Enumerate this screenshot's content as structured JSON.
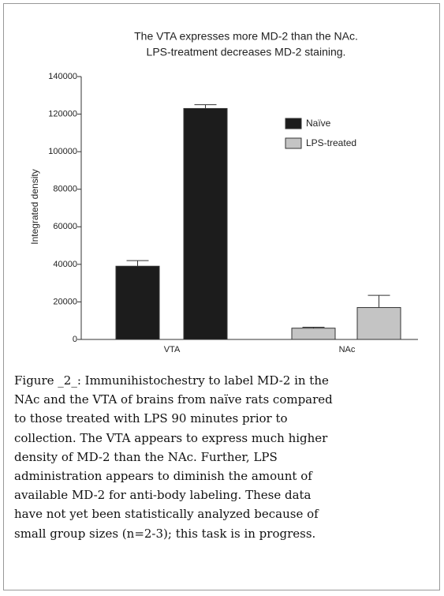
{
  "chart_data": {
    "type": "bar",
    "title": [
      "The VTA expresses more MD-2 than the NAc.",
      "LPS-treatment decreases MD-2 staining."
    ],
    "y_label": "Integrated density",
    "ylim": [
      0,
      140000
    ],
    "yticks": [
      0,
      20000,
      40000,
      60000,
      80000,
      100000,
      120000,
      140000
    ],
    "legend": [
      {
        "name": "Naïve",
        "color": "#1c1c1c"
      },
      {
        "name": "LPS-treated",
        "color": "#c4c4c4"
      }
    ],
    "groups": [
      {
        "category": "VTA",
        "color": "#1c1c1c",
        "values": [
          39000,
          123000
        ],
        "errors": [
          3000,
          2000
        ]
      },
      {
        "category": "NAc",
        "color": "#c4c4c4",
        "values": [
          6000,
          17000
        ],
        "errors": [
          500,
          6500
        ]
      }
    ]
  },
  "caption": [
    "Figure _2_: Immunihistochestry to label MD-2 in the",
    "NAc and the VTA of brains from naïve rats compared",
    "to those treated with LPS 90 minutes prior to",
    "collection.  The VTA appears to express much higher",
    "density of MD-2 than the NAc.  Further, LPS",
    "administration appears to diminish the amount of",
    "available MD-2 for anti-body labeling.  These data",
    "have not yet been statistically analyzed because of",
    "small group sizes (n=2-3); this task is in progress."
  ]
}
